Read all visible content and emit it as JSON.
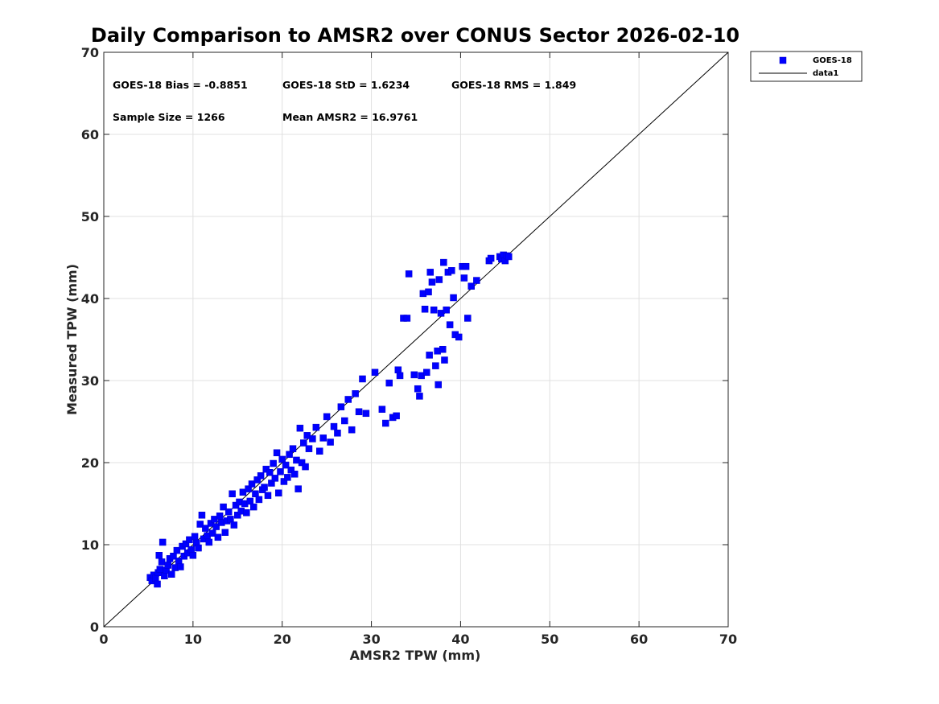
{
  "chart_data": {
    "type": "scatter",
    "title": "Daily Comparison to AMSR2 over CONUS Sector 2026-02-10",
    "xlabel": "AMSR2 TPW (mm)",
    "ylabel": "Measured TPW (mm)",
    "xlim": [
      0,
      70
    ],
    "ylim": [
      0,
      70
    ],
    "xticks": [
      "0",
      "10",
      "20",
      "30",
      "40",
      "50",
      "60",
      "70"
    ],
    "yticks": [
      "0",
      "10",
      "20",
      "30",
      "40",
      "50",
      "60",
      "70"
    ],
    "grid": true,
    "legend_position": "outside-top-right",
    "stats": {
      "bias": "GOES-18 Bias = -0.8851",
      "std": "GOES-18 StD = 1.6234",
      "rms": "GOES-18 RMS = 1.849",
      "sample_size": "Sample Size = 1266",
      "mean": "Mean AMSR2 = 16.9761"
    },
    "series": [
      {
        "name": "GOES-18",
        "marker": "square",
        "color": "#0000ff",
        "points": [
          [
            5.2,
            6.0
          ],
          [
            5.4,
            5.6
          ],
          [
            5.6,
            6.3
          ],
          [
            5.8,
            5.9
          ],
          [
            6.0,
            5.2
          ],
          [
            6.1,
            6.6
          ],
          [
            6.2,
            8.7
          ],
          [
            6.3,
            7.0
          ],
          [
            6.5,
            7.9
          ],
          [
            6.6,
            10.3
          ],
          [
            6.8,
            6.2
          ],
          [
            7.0,
            6.9
          ],
          [
            7.2,
            7.5
          ],
          [
            7.4,
            8.3
          ],
          [
            7.6,
            6.4
          ],
          [
            7.8,
            8.6
          ],
          [
            8.0,
            7.2
          ],
          [
            8.2,
            9.3
          ],
          [
            8.4,
            8.0
          ],
          [
            8.6,
            7.3
          ],
          [
            8.8,
            9.8
          ],
          [
            9.0,
            8.6
          ],
          [
            9.2,
            10.1
          ],
          [
            9.4,
            9.0
          ],
          [
            9.6,
            10.6
          ],
          [
            9.8,
            9.4
          ],
          [
            10.0,
            8.7
          ],
          [
            10.2,
            11.0
          ],
          [
            10.4,
            10.2
          ],
          [
            10.6,
            9.6
          ],
          [
            10.8,
            12.5
          ],
          [
            11.0,
            13.6
          ],
          [
            11.2,
            10.7
          ],
          [
            11.4,
            12.0
          ],
          [
            11.6,
            11.1
          ],
          [
            11.8,
            10.3
          ],
          [
            12.0,
            12.6
          ],
          [
            12.2,
            11.4
          ],
          [
            12.4,
            13.1
          ],
          [
            12.6,
            12.2
          ],
          [
            12.8,
            10.9
          ],
          [
            13.0,
            13.5
          ],
          [
            13.2,
            12.7
          ],
          [
            13.4,
            14.6
          ],
          [
            13.6,
            11.5
          ],
          [
            13.8,
            12.9
          ],
          [
            14.0,
            14.0
          ],
          [
            14.2,
            13.1
          ],
          [
            14.4,
            16.2
          ],
          [
            14.6,
            12.4
          ],
          [
            14.8,
            14.8
          ],
          [
            15.0,
            13.6
          ],
          [
            15.2,
            15.2
          ],
          [
            15.4,
            14.1
          ],
          [
            15.6,
            16.4
          ],
          [
            15.8,
            15.0
          ],
          [
            16.0,
            13.9
          ],
          [
            16.2,
            16.8
          ],
          [
            16.4,
            15.3
          ],
          [
            16.6,
            17.4
          ],
          [
            16.8,
            14.6
          ],
          [
            17.0,
            16.2
          ],
          [
            17.2,
            17.9
          ],
          [
            17.4,
            15.5
          ],
          [
            17.6,
            18.4
          ],
          [
            17.8,
            16.7
          ],
          [
            18.0,
            17.0
          ],
          [
            18.2,
            19.2
          ],
          [
            18.4,
            16.0
          ],
          [
            18.6,
            18.8
          ],
          [
            18.8,
            17.5
          ],
          [
            19.0,
            19.9
          ],
          [
            19.2,
            18.1
          ],
          [
            19.4,
            21.2
          ],
          [
            19.6,
            16.3
          ],
          [
            19.8,
            18.9
          ],
          [
            20.0,
            20.4
          ],
          [
            20.2,
            17.7
          ],
          [
            20.4,
            19.7
          ],
          [
            20.6,
            18.2
          ],
          [
            20.8,
            21.0
          ],
          [
            21.0,
            19.1
          ],
          [
            21.2,
            21.7
          ],
          [
            21.4,
            18.6
          ],
          [
            21.6,
            20.3
          ],
          [
            21.8,
            16.8
          ],
          [
            22.0,
            24.2
          ],
          [
            22.2,
            20.0
          ],
          [
            22.4,
            22.4
          ],
          [
            22.6,
            19.5
          ],
          [
            22.8,
            23.3
          ],
          [
            23.0,
            21.7
          ],
          [
            23.4,
            22.9
          ],
          [
            23.8,
            24.3
          ],
          [
            24.2,
            21.4
          ],
          [
            24.6,
            23.0
          ],
          [
            25.0,
            25.6
          ],
          [
            25.4,
            22.5
          ],
          [
            25.8,
            24.4
          ],
          [
            26.2,
            23.6
          ],
          [
            26.6,
            26.8
          ],
          [
            27.0,
            25.1
          ],
          [
            27.4,
            27.7
          ],
          [
            27.8,
            24.0
          ],
          [
            28.2,
            28.4
          ],
          [
            28.6,
            26.2
          ],
          [
            29.0,
            30.2
          ],
          [
            29.4,
            26.0
          ],
          [
            30.4,
            31.0
          ],
          [
            31.2,
            26.5
          ],
          [
            31.6,
            24.8
          ],
          [
            32.0,
            29.7
          ],
          [
            32.4,
            25.5
          ],
          [
            32.8,
            25.7
          ],
          [
            33.0,
            31.3
          ],
          [
            33.2,
            30.6
          ],
          [
            33.6,
            37.6
          ],
          [
            34.0,
            37.6
          ],
          [
            34.2,
            43.0
          ],
          [
            34.8,
            30.7
          ],
          [
            35.2,
            29.0
          ],
          [
            35.4,
            28.1
          ],
          [
            35.6,
            30.6
          ],
          [
            35.8,
            40.6
          ],
          [
            36.0,
            38.7
          ],
          [
            36.2,
            31.0
          ],
          [
            36.4,
            40.8
          ],
          [
            36.5,
            33.1
          ],
          [
            36.6,
            43.2
          ],
          [
            36.8,
            42.0
          ],
          [
            37.0,
            38.6
          ],
          [
            37.2,
            31.8
          ],
          [
            37.4,
            33.6
          ],
          [
            37.5,
            29.5
          ],
          [
            37.6,
            42.3
          ],
          [
            37.8,
            38.2
          ],
          [
            38.0,
            33.8
          ],
          [
            38.1,
            44.4
          ],
          [
            38.2,
            32.5
          ],
          [
            38.4,
            38.6
          ],
          [
            38.6,
            43.2
          ],
          [
            38.8,
            36.8
          ],
          [
            39.0,
            43.4
          ],
          [
            39.2,
            40.1
          ],
          [
            39.4,
            35.6
          ],
          [
            39.8,
            35.3
          ],
          [
            40.2,
            43.9
          ],
          [
            40.4,
            42.5
          ],
          [
            40.6,
            43.9
          ],
          [
            40.8,
            37.6
          ],
          [
            41.2,
            41.5
          ],
          [
            41.8,
            42.2
          ],
          [
            43.2,
            44.6
          ],
          [
            43.4,
            44.9
          ],
          [
            44.4,
            45.1
          ],
          [
            44.6,
            44.8
          ],
          [
            44.8,
            45.3
          ],
          [
            45.0,
            44.6
          ],
          [
            45.2,
            45.2
          ],
          [
            45.4,
            45.1
          ]
        ]
      },
      {
        "name": "data1",
        "type": "line",
        "color": "#000000",
        "x": [
          0,
          70
        ],
        "y": [
          0,
          70
        ]
      }
    ]
  }
}
